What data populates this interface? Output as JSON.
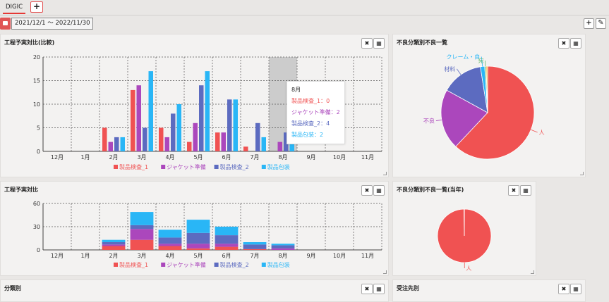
{
  "tabs": [
    {
      "label": "DIGIC"
    }
  ],
  "tab_add": "+",
  "date_range": "2021/12/1 ～ 2022/11/30",
  "toolbar": {
    "add": "+",
    "edit": "✎"
  },
  "colors": {
    "s1": "#f05252",
    "s2": "#ab47bc",
    "s3": "#5c6bc0",
    "s4": "#29b6f6"
  },
  "panels": {
    "p1": {
      "title": "工程予実対比(比較)"
    },
    "p2": {
      "title": "不良分類別不良一覧"
    },
    "p3": {
      "title": "工程予実対比"
    },
    "p4": {
      "title": "不良分類別不良一覧(当年)"
    },
    "p5": {
      "title": "分類別"
    },
    "p6": {
      "title": "受注先別"
    }
  },
  "tooltip": {
    "title": "8月",
    "lines": [
      "製品検査_1：0",
      "ジャケット準備：2",
      "製品検査_2：4",
      "製品包装：2"
    ]
  },
  "chart_data": [
    {
      "type": "bar",
      "title": "工程予実対比(比較)",
      "categories": [
        "12月",
        "1月",
        "2月",
        "3月",
        "4月",
        "5月",
        "6月",
        "7月",
        "8月",
        "9月",
        "10月",
        "11月"
      ],
      "series": [
        {
          "name": "製品検査_1",
          "values": [
            0,
            0,
            5,
            13,
            5,
            2,
            4,
            1,
            0,
            0,
            0,
            0
          ]
        },
        {
          "name": "ジャケット準備",
          "values": [
            0,
            0,
            2,
            14,
            3,
            6,
            4,
            0,
            2,
            0,
            0,
            0
          ]
        },
        {
          "name": "製品検査_2",
          "values": [
            0,
            0,
            3,
            5,
            8,
            14,
            11,
            6,
            4,
            0,
            0,
            0
          ]
        },
        {
          "name": "製品包装",
          "values": [
            0,
            0,
            3,
            17,
            10,
            17,
            11,
            3,
            2,
            0,
            0,
            0
          ]
        }
      ],
      "ylim": [
        0,
        20
      ],
      "yticks": [
        0,
        5,
        10,
        15,
        20
      ],
      "highlight": "8月",
      "legend": "bottom"
    },
    {
      "type": "bar",
      "stacked": true,
      "title": "工程予実対比",
      "categories": [
        "12月",
        "1月",
        "2月",
        "3月",
        "4月",
        "5月",
        "6月",
        "7月",
        "8月",
        "9月",
        "10月",
        "11月"
      ],
      "series": [
        {
          "name": "製品検査_1",
          "values": [
            0,
            0,
            5,
            13,
            5,
            2,
            4,
            1,
            0,
            0,
            0,
            0
          ]
        },
        {
          "name": "ジャケット準備",
          "values": [
            0,
            0,
            2,
            14,
            3,
            6,
            4,
            0,
            2,
            0,
            0,
            0
          ]
        },
        {
          "name": "製品検査_2",
          "values": [
            0,
            0,
            3,
            5,
            8,
            14,
            11,
            6,
            4,
            0,
            0,
            0
          ]
        },
        {
          "name": "製品包装",
          "values": [
            0,
            0,
            3,
            17,
            10,
            17,
            11,
            3,
            2,
            0,
            0,
            0
          ]
        }
      ],
      "ylim": [
        0,
        60
      ],
      "yticks": [
        0,
        30,
        60
      ],
      "legend": "bottom"
    },
    {
      "type": "pie",
      "title": "不良分類別不良一覧",
      "slices": [
        {
          "label": "人",
          "value": 62,
          "color": "#f05252"
        },
        {
          "label": "不良",
          "value": 21,
          "color": "#ab47bc"
        },
        {
          "label": "材料",
          "value": 14.5,
          "color": "#5c6bc0"
        },
        {
          "label": "クレーム・自",
          "value": 1.5,
          "color": "#29b6f6"
        },
        {
          "label": "宛",
          "value": 0.5,
          "color": "#66bb6a"
        },
        {
          "label": "",
          "value": 0.5,
          "color": "#ffa726"
        }
      ]
    },
    {
      "type": "pie",
      "title": "不良分類別不良一覧(当年)",
      "slices": [
        {
          "label": "人",
          "value": 99.8,
          "color": "#f05252"
        },
        {
          "label": "",
          "value": 0.2,
          "color": "#ffffff"
        }
      ]
    }
  ]
}
